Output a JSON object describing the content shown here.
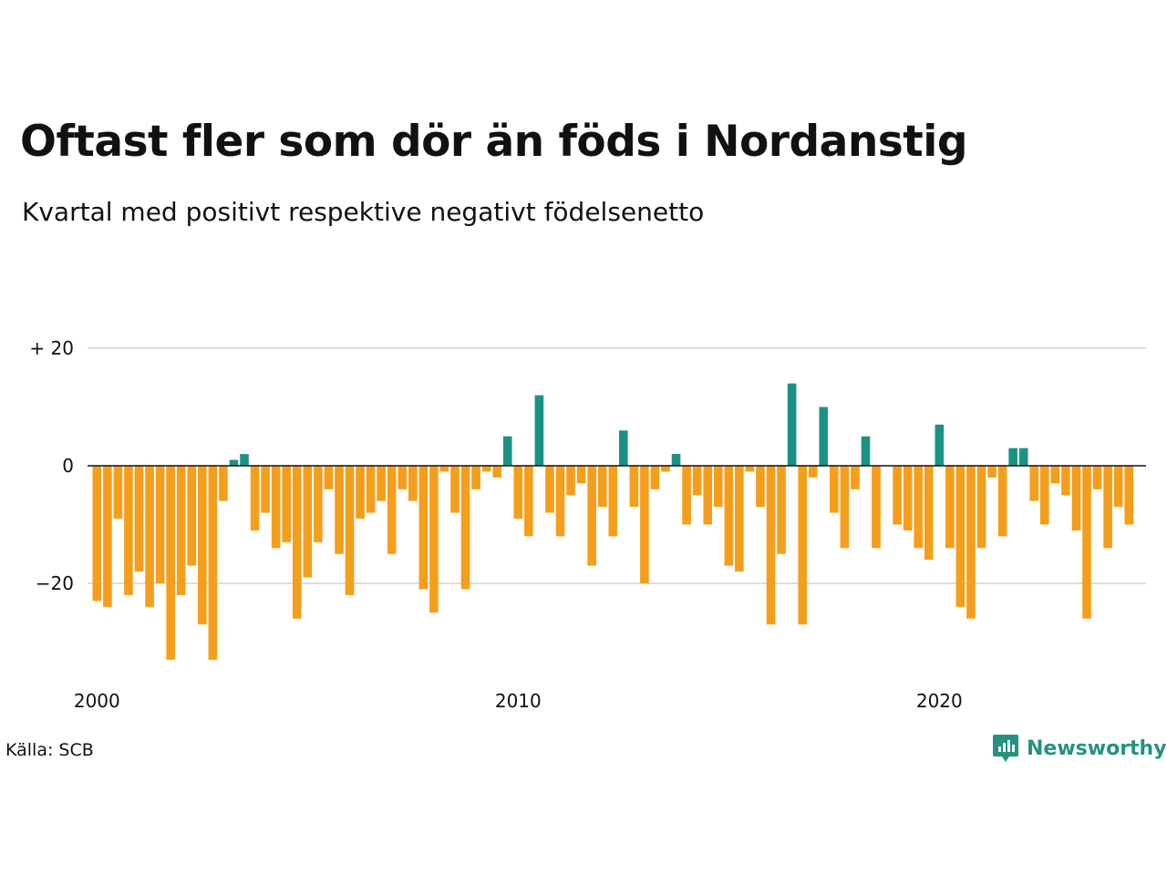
{
  "header": {
    "title": "Oftast fler som dör än föds i Nordanstig",
    "subtitle": "Kvartal med positivt respektive negativt födelsenetto"
  },
  "footer": {
    "source": "Källa: SCB",
    "brand": "Newsworthy",
    "brand_icon": "newsworthy-logo-icon"
  },
  "colors": {
    "positive": "#1b9384",
    "negative": "#f59e1c",
    "grid": "#dddddd",
    "zero_line": "#111111",
    "brand": "#27917f"
  },
  "chart_data": {
    "type": "bar",
    "title": "Oftast fler som dör än föds i Nordanstig",
    "subtitle": "Kvartal med positivt respektive negativt födelsenetto",
    "xlabel": "",
    "ylabel": "",
    "x_start_year": 2000,
    "periods_per_year": 4,
    "x_ticks": [
      2000,
      2010,
      2020
    ],
    "y_ticks": [
      20,
      0,
      -20
    ],
    "y_tick_labels": [
      "+ 20",
      "0",
      "−20"
    ],
    "ylim": [
      -35,
      20
    ],
    "grid": true,
    "legend": "none",
    "values": [
      -23,
      -24,
      -9,
      -22,
      -18,
      -24,
      -20,
      -33,
      -22,
      -17,
      -27,
      -33,
      -6,
      1,
      2,
      -11,
      -8,
      -14,
      -13,
      -26,
      -19,
      -13,
      -4,
      -15,
      -22,
      -9,
      -8,
      -6,
      -15,
      -4,
      -6,
      -21,
      -25,
      -1,
      -8,
      -21,
      -4,
      -1,
      -2,
      5,
      -9,
      -12,
      12,
      -8,
      -12,
      -5,
      -3,
      -17,
      -7,
      -12,
      6,
      -7,
      -20,
      -4,
      -1,
      2,
      -10,
      -5,
      -10,
      -7,
      -17,
      -18,
      -1,
      -7,
      -27,
      -15,
      14,
      -27,
      -2,
      10,
      -8,
      -14,
      -4,
      5,
      -14,
      0,
      -10,
      -11,
      -14,
      -16,
      7,
      -14,
      -24,
      -26,
      -14,
      -2,
      -12,
      3,
      3,
      -6,
      -10,
      -3,
      -5,
      -11,
      -26,
      -4,
      -14,
      -7,
      -10
    ]
  }
}
